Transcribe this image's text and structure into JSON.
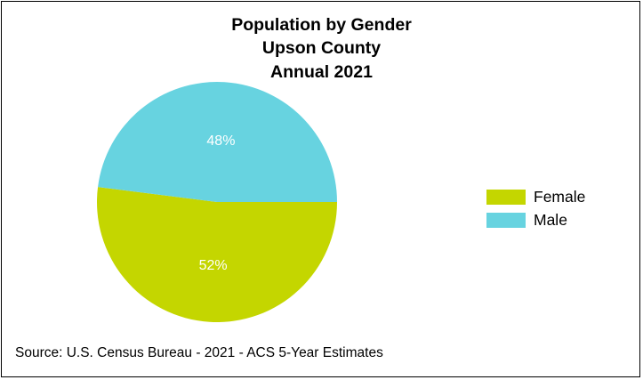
{
  "chart_data": {
    "type": "pie",
    "title_lines": [
      "Population by Gender",
      "Upson County",
      "Annual 2021"
    ],
    "slices": [
      {
        "name": "Female",
        "value": 52,
        "label": "52%",
        "color": "#c4d600"
      },
      {
        "name": "Male",
        "value": 48,
        "label": "48%",
        "color": "#67d3e0"
      }
    ],
    "legend": {
      "position": "right"
    }
  },
  "source": "Source: U.S. Census Bureau - 2021 - ACS 5-Year Estimates"
}
